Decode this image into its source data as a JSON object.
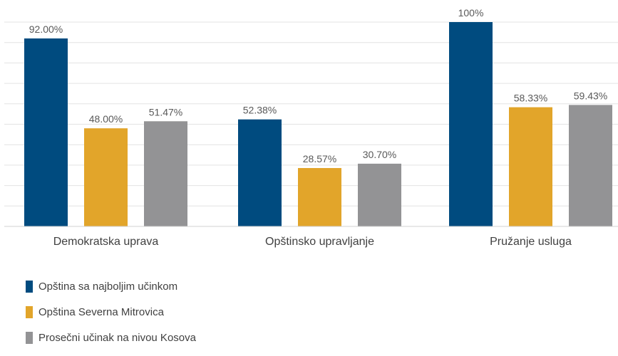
{
  "chart_data": {
    "type": "bar",
    "categories": [
      "Demokratska uprava",
      "Opštinsko upravljanje",
      "Pružanje usluga"
    ],
    "series": [
      {
        "name": "Opština sa najboljim učinkom",
        "color": "#004b7f",
        "values": [
          92.0,
          52.38,
          100
        ],
        "labels": [
          "92.00%",
          "52.38%",
          "100%"
        ]
      },
      {
        "name": "Opština Severna Mitrovica",
        "color": "#e2a52a",
        "values": [
          48.0,
          28.57,
          58.33
        ],
        "labels": [
          "48.00%",
          "28.57%",
          "58.33%"
        ]
      },
      {
        "name": "Prosečni učinak na nivou Kosova",
        "color": "#939395",
        "values": [
          51.47,
          30.7,
          59.43
        ],
        "labels": [
          "51.47%",
          "30.70%",
          "59.43%"
        ]
      }
    ],
    "ylim": [
      0,
      100
    ],
    "grid": true,
    "legend_position": "bottom-left"
  }
}
